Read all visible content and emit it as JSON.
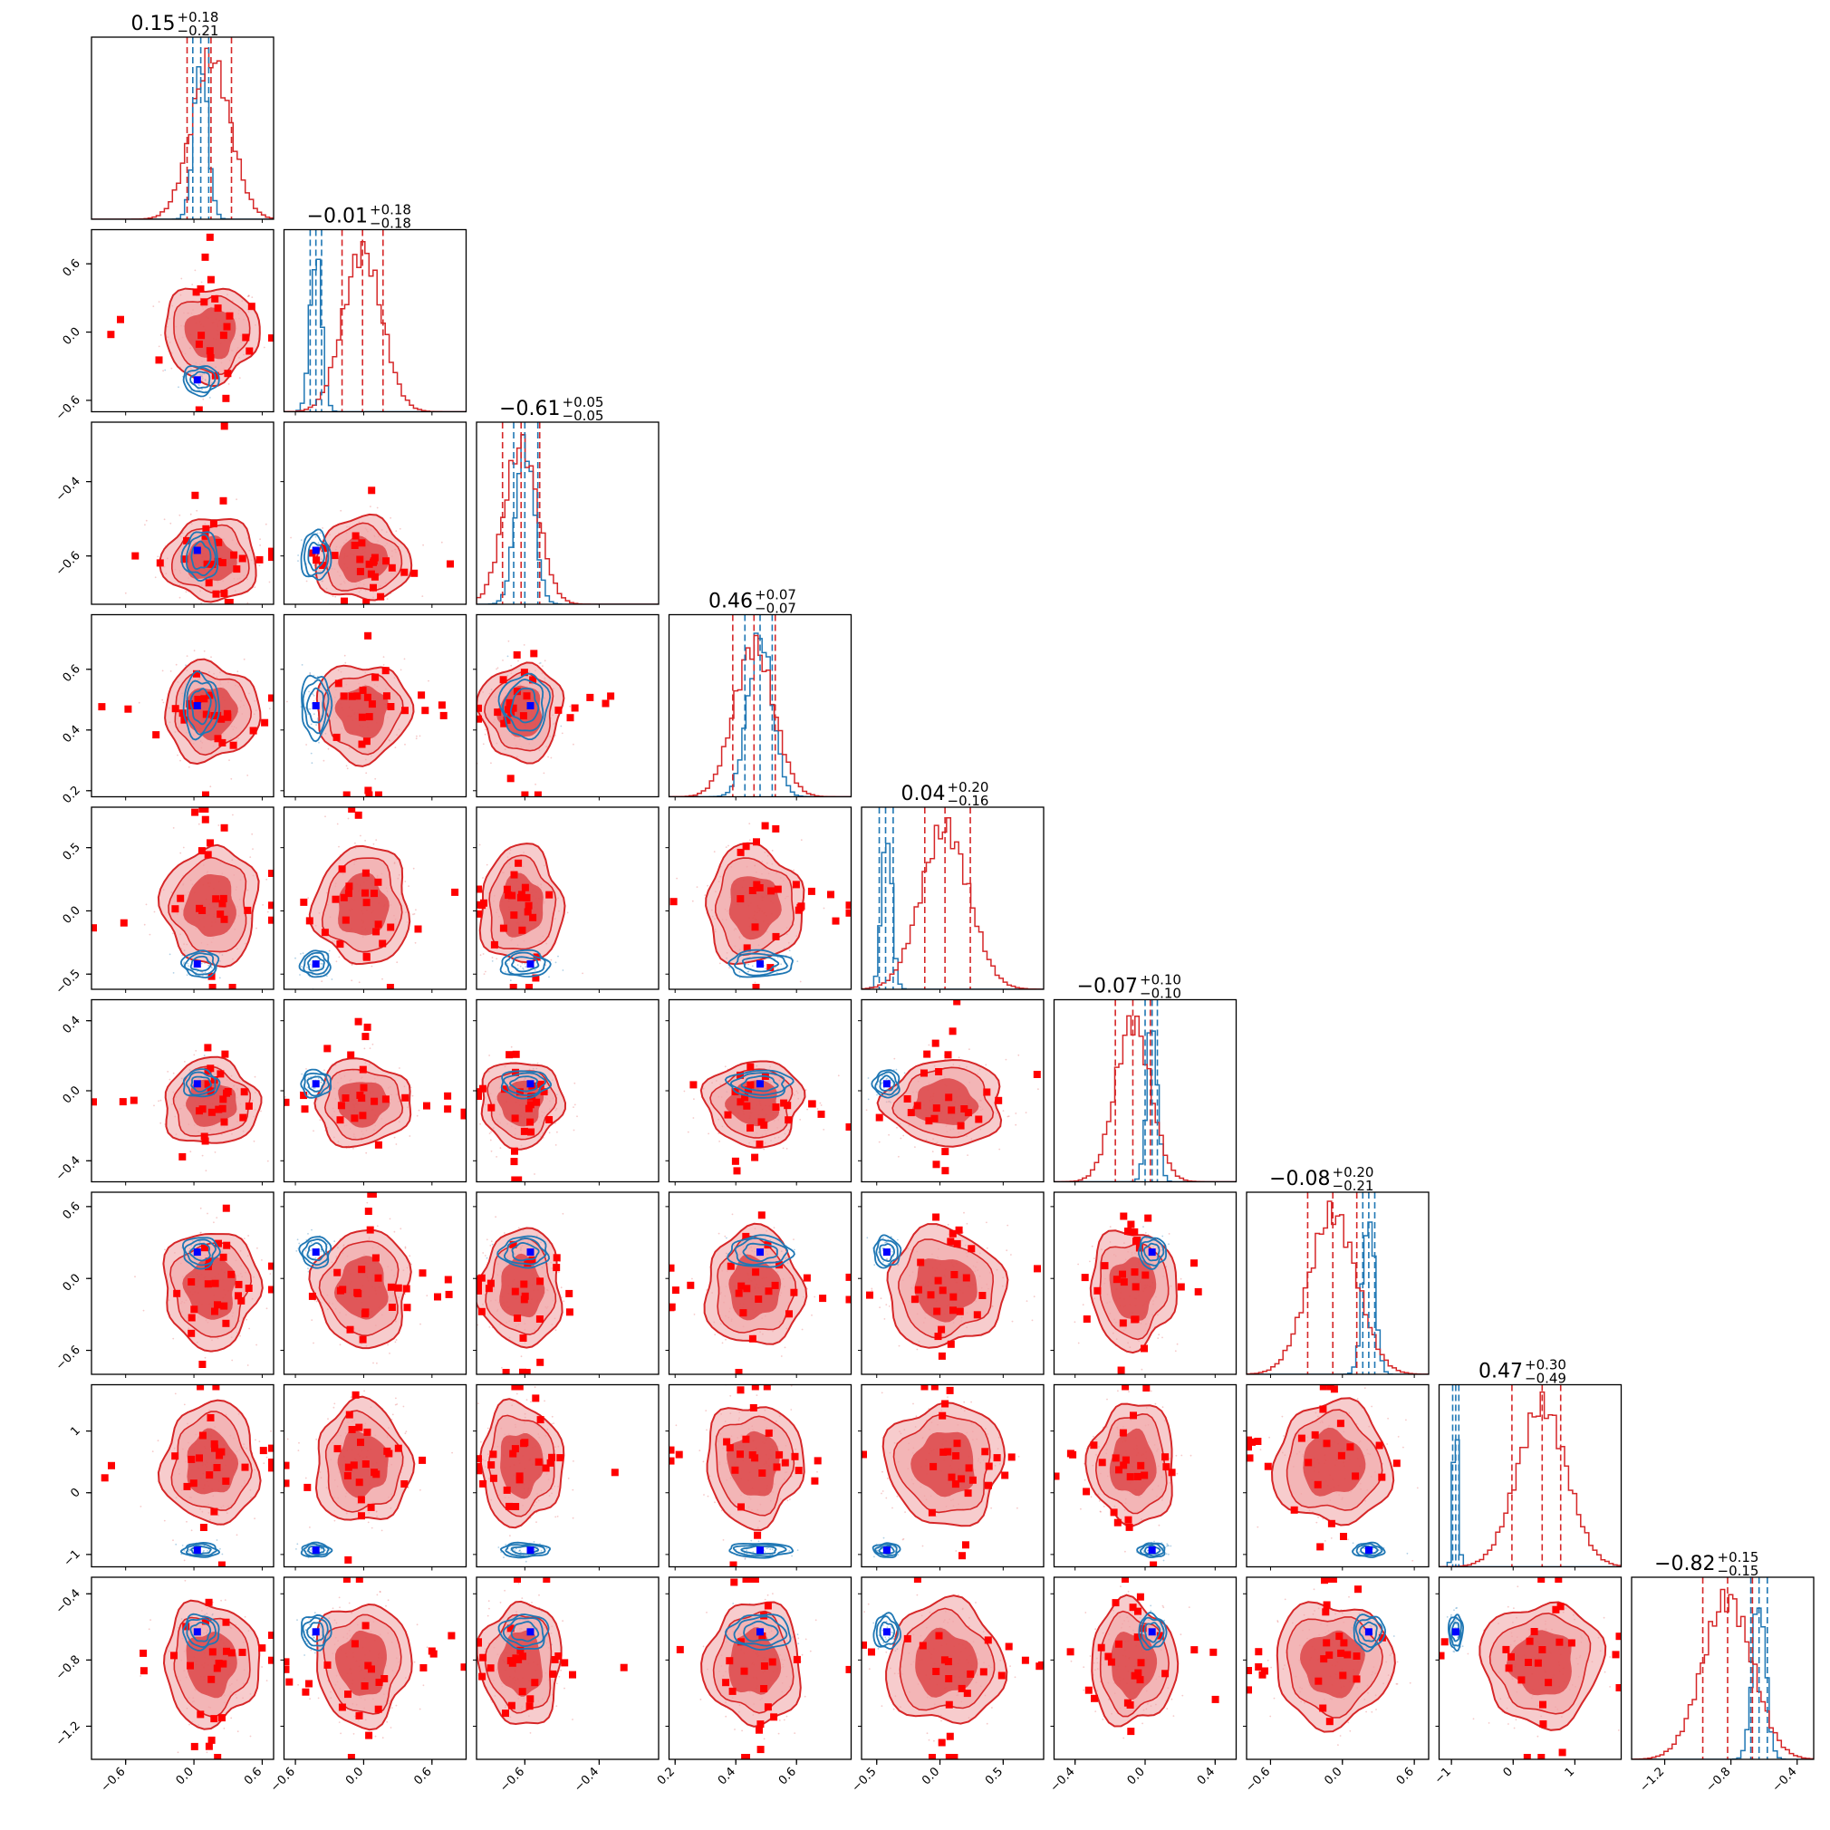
{
  "chart_data": {
    "type": "corner",
    "n_params": 9,
    "colors": {
      "red": "#d62728",
      "red_fill_light": "#f0a3a4",
      "red_fill_dark": "#d9383a",
      "red_marker": "#ff0000",
      "blue": "#1f77b4",
      "blue_marker": "#0000ff"
    },
    "titles": [
      {
        "value": "0.15",
        "plus": "+0.18",
        "minus": "−0.21"
      },
      {
        "value": "−0.01",
        "plus": "+0.18",
        "minus": "−0.18"
      },
      {
        "value": "−0.61",
        "plus": "+0.05",
        "minus": "−0.05"
      },
      {
        "value": "0.46",
        "plus": "+0.07",
        "minus": "−0.07"
      },
      {
        "value": "0.04",
        "plus": "+0.20",
        "minus": "−0.16"
      },
      {
        "value": "−0.07",
        "plus": "+0.10",
        "minus": "−0.10"
      },
      {
        "value": "−0.08",
        "plus": "+0.20",
        "minus": "−0.21"
      },
      {
        "value": "0.47",
        "plus": "+0.30",
        "minus": "−0.49"
      },
      {
        "value": "−0.82",
        "plus": "+0.15",
        "minus": "−0.15"
      }
    ],
    "params": [
      {
        "range": [
          -0.9,
          0.7
        ],
        "ticks": [
          "−0.6",
          "0.0",
          "0.6"
        ],
        "red_post": {
          "mu": 0.15,
          "sd": 0.17
        },
        "blue_post": {
          "mu": 0.06,
          "sd": 0.06
        },
        "red_quantiles": [
          -0.06,
          0.15,
          0.33
        ],
        "blue_quantiles": [
          -0.01,
          0.06,
          0.13
        ],
        "true": 0.03
      },
      {
        "range": [
          -0.7,
          0.9
        ],
        "ticks": [
          "−0.6",
          "0.0",
          "0.6"
        ],
        "red_post": {
          "mu": -0.01,
          "sd": 0.17
        },
        "blue_post": {
          "mu": -0.42,
          "sd": 0.05
        },
        "red_quantiles": [
          -0.19,
          -0.01,
          0.17
        ],
        "blue_quantiles": [
          -0.47,
          -0.42,
          -0.37
        ],
        "true": -0.42
      },
      {
        "range": [
          -0.73,
          -0.24
        ],
        "ticks": [
          "−0.6",
          "−0.4"
        ],
        "red_post": {
          "mu": -0.61,
          "sd": 0.045
        },
        "blue_post": {
          "mu": -0.6,
          "sd": 0.025
        },
        "red_quantiles": [
          -0.66,
          -0.61,
          -0.56
        ],
        "blue_quantiles": [
          -0.63,
          -0.6,
          -0.565
        ],
        "true": -0.585
      },
      {
        "range": [
          0.18,
          0.78
        ],
        "ticks": [
          "0.2",
          "0.4",
          "0.6"
        ],
        "red_post": {
          "mu": 0.46,
          "sd": 0.065
        },
        "blue_post": {
          "mu": 0.48,
          "sd": 0.04
        },
        "red_quantiles": [
          0.39,
          0.46,
          0.53
        ],
        "blue_quantiles": [
          0.43,
          0.48,
          0.52
        ],
        "true": 0.48
      },
      {
        "range": [
          -0.62,
          0.82
        ],
        "ticks": [
          "−0.5",
          "0.0",
          "0.5"
        ],
        "red_post": {
          "mu": 0.04,
          "sd": 0.19
        },
        "blue_post": {
          "mu": -0.42,
          "sd": 0.04
        },
        "red_quantiles": [
          -0.12,
          0.04,
          0.24
        ],
        "blue_quantiles": [
          -0.48,
          -0.43,
          -0.37
        ],
        "true": -0.42
      },
      {
        "range": [
          -0.52,
          0.52
        ],
        "ticks": [
          "−0.4",
          "0.0",
          "0.4"
        ],
        "red_post": {
          "mu": -0.07,
          "sd": 0.1
        },
        "blue_post": {
          "mu": 0.04,
          "sd": 0.03
        },
        "red_quantiles": [
          -0.17,
          -0.07,
          0.03
        ],
        "blue_quantiles": [
          0.0,
          0.04,
          0.07
        ],
        "true": 0.04
      },
      {
        "range": [
          -0.8,
          0.72
        ],
        "ticks": [
          "−0.6",
          "0.0",
          "0.6"
        ],
        "red_post": {
          "mu": -0.08,
          "sd": 0.2
        },
        "blue_post": {
          "mu": 0.22,
          "sd": 0.05
        },
        "red_quantiles": [
          -0.29,
          -0.08,
          0.12
        ],
        "blue_quantiles": [
          0.17,
          0.22,
          0.27
        ],
        "true": 0.22
      },
      {
        "range": [
          -1.2,
          1.75
        ],
        "ticks": [
          "−1",
          "0",
          "1"
        ],
        "red_post": {
          "mu": 0.47,
          "sd": 0.4
        },
        "blue_post": {
          "mu": -0.93,
          "sd": 0.04
        },
        "red_quantiles": [
          -0.02,
          0.47,
          0.77
        ],
        "blue_quantiles": [
          -0.98,
          -0.93,
          -0.88
        ],
        "true": -0.93
      },
      {
        "range": [
          -1.4,
          -0.3
        ],
        "ticks": [
          "−1.2",
          "−0.8",
          "−0.4"
        ],
        "red_post": {
          "mu": -0.82,
          "sd": 0.15
        },
        "blue_post": {
          "mu": -0.63,
          "sd": 0.04
        },
        "red_quantiles": [
          -0.97,
          -0.82,
          -0.67
        ],
        "blue_quantiles": [
          -0.68,
          -0.63,
          -0.58
        ],
        "true": -0.63
      }
    ]
  }
}
